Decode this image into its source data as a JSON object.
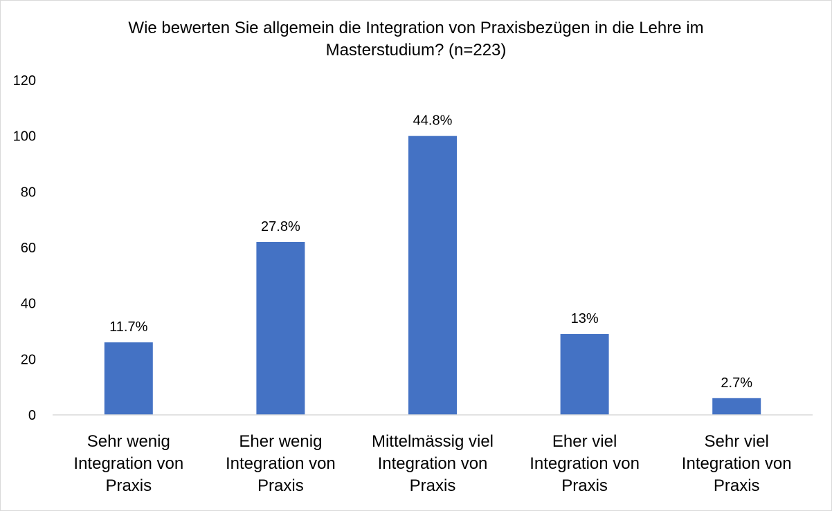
{
  "chart_data": {
    "type": "bar",
    "title": "Wie bewerten Sie allgemein die Integration von Praxisbezügen in die Lehre im Masterstudium? (n=223)",
    "title_lines": [
      "Wie bewerten Sie allgemein die Integration von Praxisbezügen in die Lehre im",
      "Masterstudium? (n=223)"
    ],
    "categories": [
      [
        "Sehr wenig",
        "Integration von",
        "Praxis"
      ],
      [
        "Eher wenig",
        "Integration von",
        "Praxis"
      ],
      [
        "Mittelmässig viel",
        "Integration von",
        "Praxis"
      ],
      [
        "Eher viel",
        "Integration von",
        "Praxis"
      ],
      [
        "Sehr viel",
        "Integration von",
        "Praxis"
      ]
    ],
    "values": [
      26,
      62,
      100,
      29,
      6
    ],
    "data_labels": [
      "11.7%",
      "27.8%",
      "44.8%",
      "13%",
      "2.7%"
    ],
    "yticks": [
      "0",
      "20",
      "40",
      "60",
      "80",
      "100",
      "120"
    ],
    "ylim": [
      0,
      120
    ],
    "xlabel": "",
    "ylabel": "",
    "bar_color": "#4472c4",
    "axis_color": "#d9d9d9",
    "grid": false,
    "legend": "none"
  }
}
